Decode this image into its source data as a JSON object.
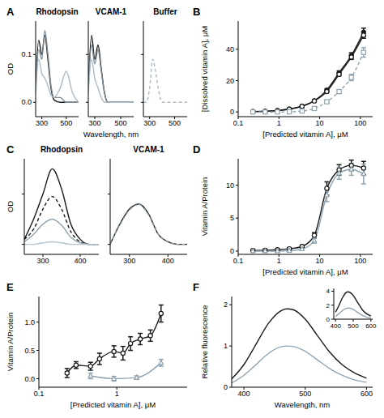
{
  "chart_data": [
    {
      "type": "line",
      "annotations": [
        "A"
      ],
      "title": "Rhodopsin",
      "y_label": "OD",
      "x": [
        250,
        275,
        300,
        325,
        350,
        375,
        400,
        450,
        500,
        550,
        600
      ],
      "xlim": [
        250,
        600
      ],
      "xticks": [
        300,
        500
      ],
      "ylim": [
        -0.03,
        0.17
      ],
      "yticks": [
        {
          "value": 0,
          "label": "0.0"
        },
        0.1
      ],
      "series": [
        {
          "color": "#1a1a1a",
          "line_style": "solid",
          "values": [
            0.03,
            0.13,
            0.1,
            0.14,
            0.09,
            0.03,
            0.005,
            0,
            0,
            0,
            0
          ]
        },
        {
          "color": "#7d8c96",
          "line_style": "solid",
          "values": [
            0.03,
            0.11,
            0.09,
            0.15,
            0.1,
            0.035,
            0.01,
            0.01,
            0,
            0,
            0
          ]
        },
        {
          "color": "#a9bac6",
          "line_style": "solid",
          "values": [
            0.02,
            0.09,
            0.06,
            0.05,
            0.035,
            0.015,
            0.01,
            0.03,
            0.065,
            0.02,
            0
          ]
        }
      ]
    },
    {
      "type": "line",
      "title": "VCAM-1",
      "x_label": "Wavelength, nm",
      "tick_labels": "x",
      "x": [
        250,
        275,
        300,
        325,
        350,
        375,
        400,
        450,
        500,
        550,
        600
      ],
      "xlim": [
        250,
        600
      ],
      "xticks": [
        300,
        500
      ],
      "ylim": [
        -0.03,
        0.17
      ],
      "yticks": [
        0,
        0.1
      ],
      "series": [
        {
          "color": "#1a1a1a",
          "line_style": "solid",
          "values": [
            0.03,
            0.14,
            0.09,
            0.12,
            0.07,
            0.02,
            0,
            0,
            0,
            0,
            0
          ]
        },
        {
          "color": "#7d8c96",
          "line_style": "solid",
          "values": [
            0.03,
            0.12,
            0.08,
            0.11,
            0.065,
            0.02,
            0,
            0,
            0,
            0,
            0
          ]
        },
        {
          "color": "#a9bac6",
          "line_style": "solid",
          "values": [
            0.02,
            0.09,
            0.05,
            0.03,
            0.01,
            0,
            0,
            0,
            0,
            0,
            0
          ]
        }
      ]
    },
    {
      "type": "line",
      "title": "Buffer",
      "tick_labels": "x",
      "x": [
        250,
        275,
        300,
        325,
        350,
        375,
        400,
        450,
        500,
        550,
        600
      ],
      "xlim": [
        250,
        600
      ],
      "xticks": [
        300,
        500
      ],
      "ylim": [
        -0.03,
        0.17
      ],
      "yticks": [
        0,
        0.1
      ],
      "series": [
        {
          "color": "#a9bac6",
          "line_style": "dashed",
          "values": [
            0,
            0,
            0.03,
            0.09,
            0.06,
            0.02,
            0,
            0,
            0,
            0,
            0
          ]
        }
      ]
    },
    {
      "type": "scatter",
      "annotations": [
        "B"
      ],
      "log": "x",
      "x_label": "[Predicted vitamin A], μM",
      "y_label": "[Dissolved vitamin A], μM",
      "x": [
        0.23,
        0.46,
        0.92,
        1.8,
        3.7,
        7.4,
        15,
        30,
        60,
        120
      ],
      "xlim": [
        0.1,
        200
      ],
      "xticks": [
        0.1,
        1,
        10,
        100
      ],
      "ylim": [
        -3,
        58
      ],
      "yticks": [
        0,
        20,
        40
      ],
      "series": [
        {
          "color": "#1a1a1a",
          "marker": "circle",
          "line_style": "solid",
          "values": [
            0.3,
            0.5,
            0.9,
            1.9,
            3.8,
            7.2,
            14,
            25,
            36,
            51
          ],
          "errors": [
            0.2,
            0.2,
            0.2,
            0.3,
            0.4,
            0.5,
            0.8,
            1.2,
            1.8,
            2.5
          ]
        },
        {
          "color": "#1a1a1a",
          "marker": "open_circle",
          "line_style": "solid",
          "values": [
            0.2,
            0.4,
            0.9,
            1.8,
            3.6,
            7,
            13,
            24,
            35,
            49
          ],
          "errors": [
            0.1,
            0.1,
            0.2,
            0.2,
            0.3,
            0.4,
            0.6,
            1,
            1.5,
            2
          ]
        },
        {
          "color": "#8fa3b0",
          "marker": "open_square",
          "line_style": "dashed",
          "values": [
            0,
            0,
            0,
            0.1,
            0.6,
            2.2,
            6.5,
            13,
            22,
            38
          ],
          "errors": [
            0.1,
            0.1,
            0.1,
            0.2,
            0.3,
            0.5,
            0.8,
            1.2,
            2,
            3
          ]
        }
      ]
    },
    {
      "type": "line",
      "annotations": [
        "C"
      ],
      "title": "Rhodopsin",
      "y_label": "OD",
      "tick_labels": "x",
      "x": [
        250,
        275,
        300,
        325,
        350,
        375,
        400,
        425,
        450
      ],
      "xlim": [
        250,
        450
      ],
      "xticks": [
        300,
        400
      ],
      "ylim": [
        -0.02,
        0.17
      ],
      "yticks": [
        0,
        0.1
      ],
      "series": [
        {
          "color": "#1a1a1a",
          "line_style": "solid",
          "values": [
            0.01,
            0.05,
            0.1,
            0.15,
            0.11,
            0.04,
            0.01,
            0,
            0
          ]
        },
        {
          "color": "#1a1a1a",
          "line_style": "dashed",
          "values": [
            0.01,
            0.03,
            0.07,
            0.095,
            0.07,
            0.025,
            0.005,
            0,
            0
          ]
        },
        {
          "color": "#8fa3b0",
          "line_style": "solid",
          "values": [
            0.005,
            0.02,
            0.04,
            0.05,
            0.038,
            0.014,
            0.003,
            0,
            0
          ]
        },
        {
          "color": "#b5c4ce",
          "line_style": "solid",
          "values": [
            0,
            0,
            0.003,
            0.005,
            0.003,
            0,
            0,
            0,
            0
          ]
        }
      ]
    },
    {
      "type": "line",
      "title": "VCAM-1",
      "tick_labels": "x",
      "x": [
        250,
        275,
        300,
        325,
        350,
        375,
        400,
        425,
        450
      ],
      "xlim": [
        250,
        450
      ],
      "xticks": [
        300,
        400
      ],
      "ylim": [
        -0.02,
        0.17
      ],
      "yticks": [
        0,
        0.1
      ],
      "series": [
        {
          "color": "#1a1a1a",
          "line_style": "solid",
          "values": [
            0,
            0.04,
            0.07,
            0.08,
            0.06,
            0.02,
            0.005,
            0,
            0
          ]
        },
        {
          "color": "#8fa3b0",
          "line_style": "dashed",
          "values": [
            0,
            0.038,
            0.068,
            0.079,
            0.058,
            0.02,
            0.005,
            0,
            0
          ]
        }
      ]
    },
    {
      "type": "scatter",
      "annotations": [
        "D"
      ],
      "log": "x",
      "x_label": "[Predicted vitamin A], μM",
      "y_label": "Vitamin A/Protein",
      "x": [
        0.23,
        0.46,
        0.92,
        1.8,
        3.7,
        7.4,
        15,
        30,
        60,
        120
      ],
      "xlim": [
        0.1,
        200
      ],
      "xticks": [
        0.1,
        1,
        10,
        100
      ],
      "ylim": [
        -0.5,
        14
      ],
      "yticks": [
        0,
        5,
        10
      ],
      "series": [
        {
          "color": "#1a1a1a",
          "marker": "open_circle",
          "line_style": "solid",
          "values": [
            0.1,
            0.12,
            0.2,
            0.35,
            0.7,
            2.4,
            9.5,
            12.3,
            13,
            12.6
          ],
          "errors": [
            0.1,
            0.1,
            0.1,
            0.15,
            0.2,
            0.4,
            1,
            0.8,
            0.8,
            1
          ]
        },
        {
          "color": "#8fa3b0",
          "marker": "open_triangle",
          "line_style": "solid",
          "values": [
            0,
            0,
            0,
            0.05,
            0.3,
            1.6,
            8.5,
            11.8,
            12.4,
            11.7
          ],
          "errors": [
            0.1,
            0.1,
            0.1,
            0.1,
            0.2,
            0.4,
            1,
            0.9,
            0.9,
            1.5
          ]
        }
      ]
    },
    {
      "type": "scatter",
      "annotations": [
        "E"
      ],
      "log": "x",
      "x_label": "[Predicted vitamin A], μM",
      "y_label": "Vitamin A/Protein",
      "xlim": [
        0.1,
        8
      ],
      "xticks": [
        0.1,
        1
      ],
      "ylim": [
        -0.15,
        1.45
      ],
      "yticks": [
        {
          "value": 0,
          "label": "0.0"
        },
        0.5,
        {
          "value": 1,
          "label": "1.0"
        }
      ],
      "series": [
        {
          "color": "#1a1a1a",
          "marker": "open_circle",
          "line_style": "solid",
          "x": [
            0.23,
            0.3,
            0.46,
            0.6,
            0.92,
            1.2,
            1.5,
            2,
            2.7,
            3.7
          ],
          "values": [
            0.1,
            0.24,
            0.22,
            0.35,
            0.48,
            0.45,
            0.62,
            0.7,
            0.76,
            1.15
          ],
          "errors": [
            0.08,
            0.06,
            0.07,
            0.1,
            0.1,
            0.12,
            0.12,
            0.1,
            0.1,
            0.15
          ]
        },
        {
          "color": "#8fa3b0",
          "marker": "open_triangle",
          "line_style": "solid",
          "x": [
            0.46,
            0.92,
            1.8,
            3.7
          ],
          "values": [
            0.05,
            0,
            0.02,
            0.28
          ],
          "errors": [
            0.05,
            0.04,
            0.03,
            0.06
          ]
        }
      ]
    },
    {
      "type": "line",
      "annotations": [
        "F"
      ],
      "x_label": "Wavelength, nm",
      "y_label": "Relative fluorescence",
      "x": [
        380,
        400,
        420,
        440,
        460,
        470,
        480,
        500,
        520,
        540,
        560,
        580,
        600
      ],
      "xlim": [
        380,
        610
      ],
      "xticks": [
        400,
        500,
        600
      ],
      "ylim": [
        0,
        2.2
      ],
      "yticks": [
        0,
        1,
        2
      ],
      "series": [
        {
          "color": "#1a1a1a",
          "line_style": "solid",
          "values": [
            0.2,
            0.55,
            1.05,
            1.55,
            1.85,
            1.9,
            1.88,
            1.65,
            1.25,
            0.85,
            0.55,
            0.35,
            0.22
          ]
        },
        {
          "color": "#8fa3b0",
          "line_style": "solid",
          "values": [
            0.1,
            0.29,
            0.55,
            0.82,
            0.98,
            1,
            0.99,
            0.87,
            0.66,
            0.45,
            0.29,
            0.18,
            0.12
          ]
        }
      ]
    },
    {
      "type": "line",
      "x": [
        400,
        420,
        440,
        460,
        470,
        480,
        500,
        520,
        540,
        560,
        580,
        600
      ],
      "xlim": [
        390,
        610
      ],
      "xticks": [
        400,
        500,
        600
      ],
      "ylim": [
        0,
        4.4
      ],
      "yticks": [
        0,
        2,
        4
      ],
      "series": [
        {
          "color": "#1a1a1a",
          "line_style": "solid",
          "values": [
            1,
            2,
            3.1,
            3.8,
            3.9,
            3.85,
            3.4,
            2.6,
            1.8,
            1.1,
            0.7,
            0.45
          ]
        },
        {
          "color": "#8fa3b0",
          "line_style": "solid",
          "values": [
            0.4,
            0.8,
            1.25,
            1.55,
            1.6,
            1.58,
            1.4,
            1.05,
            0.72,
            0.45,
            0.28,
            0.18
          ]
        }
      ]
    }
  ]
}
